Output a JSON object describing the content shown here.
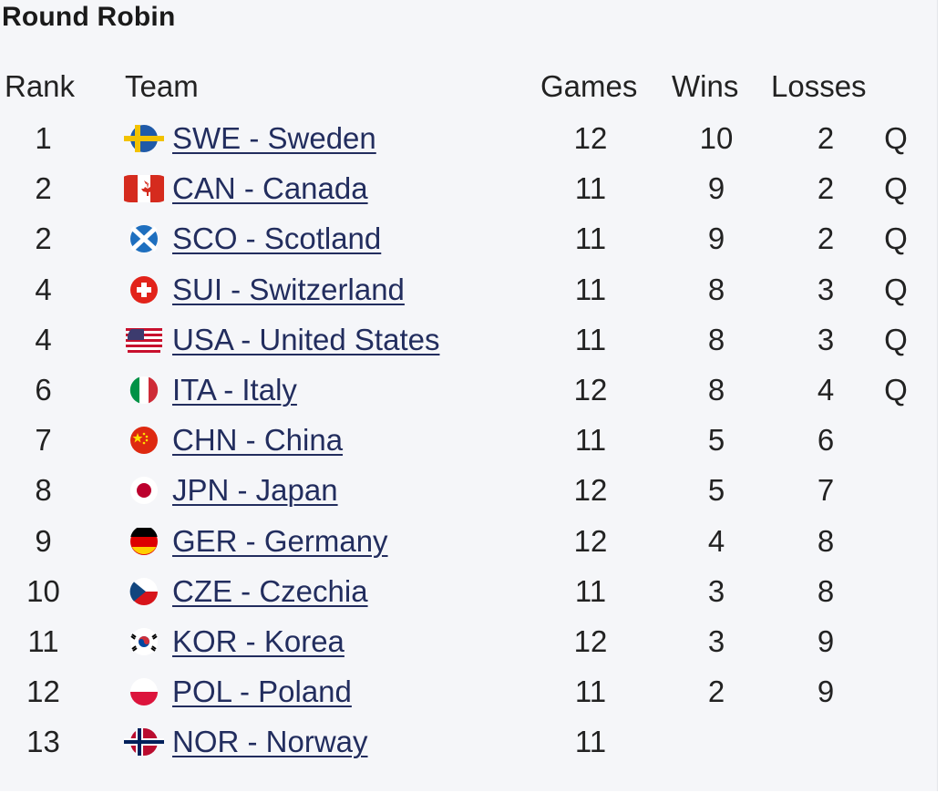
{
  "title": "Round Robin",
  "headers": {
    "rank": "Rank",
    "team": "Team",
    "games": "Games",
    "wins": "Wins",
    "losses": "Losses"
  },
  "rows": [
    {
      "rank": "1",
      "flag": "sweden-flag-icon",
      "team": "SWE - Sweden",
      "games": "12",
      "wins": "10",
      "losses": "2",
      "q": "Q"
    },
    {
      "rank": "2",
      "flag": "canada-flag-icon",
      "team": "CAN - Canada",
      "games": "11",
      "wins": "9",
      "losses": "2",
      "q": "Q"
    },
    {
      "rank": "2",
      "flag": "scotland-flag-icon",
      "team": "SCO - Scotland",
      "games": "11",
      "wins": "9",
      "losses": "2",
      "q": "Q"
    },
    {
      "rank": "4",
      "flag": "switzerland-flag-icon",
      "team": "SUI - Switzerland",
      "games": "11",
      "wins": "8",
      "losses": "3",
      "q": "Q"
    },
    {
      "rank": "4",
      "flag": "usa-flag-icon",
      "team": "USA - United States",
      "games": "11",
      "wins": "8",
      "losses": "3",
      "q": "Q"
    },
    {
      "rank": "6",
      "flag": "italy-flag-icon",
      "team": "ITA - Italy",
      "games": "12",
      "wins": "8",
      "losses": "4",
      "q": "Q"
    },
    {
      "rank": "7",
      "flag": "china-flag-icon",
      "team": "CHN - China",
      "games": "11",
      "wins": "5",
      "losses": "6",
      "q": ""
    },
    {
      "rank": "8",
      "flag": "japan-flag-icon",
      "team": "JPN - Japan",
      "games": "12",
      "wins": "5",
      "losses": "7",
      "q": ""
    },
    {
      "rank": "9",
      "flag": "germany-flag-icon",
      "team": "GER - Germany",
      "games": "12",
      "wins": "4",
      "losses": "8",
      "q": ""
    },
    {
      "rank": "10",
      "flag": "czechia-flag-icon",
      "team": "CZE - Czechia",
      "games": "11",
      "wins": "3",
      "losses": "8",
      "q": ""
    },
    {
      "rank": "11",
      "flag": "korea-flag-icon",
      "team": "KOR - Korea",
      "games": "12",
      "wins": "3",
      "losses": "9",
      "q": ""
    },
    {
      "rank": "12",
      "flag": "poland-flag-icon",
      "team": "POL - Poland",
      "games": "11",
      "wins": "2",
      "losses": "9",
      "q": ""
    },
    {
      "rank": "13",
      "flag": "norway-flag-icon",
      "team": "NOR - Norway",
      "games": "11",
      "wins": "",
      "losses": "",
      "q": ""
    }
  ],
  "colors": {
    "link": "#222d5e",
    "background": "#f5f6f9"
  }
}
